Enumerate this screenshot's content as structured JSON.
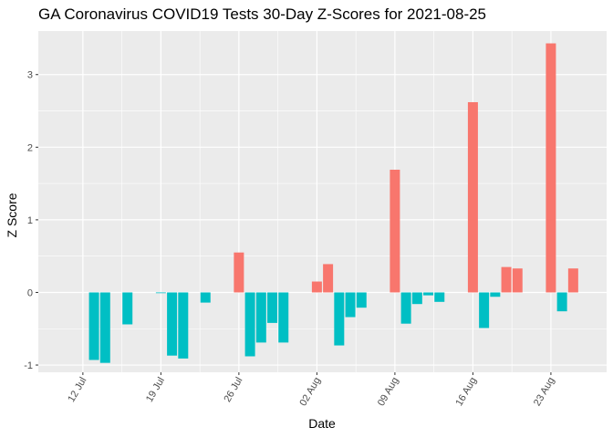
{
  "chart_data": {
    "type": "bar",
    "title": "GA Coronavirus COVID19 Tests 30-Day Z-Scores for 2021-08-25",
    "xlabel": "Date",
    "ylabel": "Z Score",
    "ylim": [
      -1.1,
      3.6
    ],
    "yticks": [
      -1,
      0,
      1,
      2,
      3
    ],
    "xlim": [
      "2021-07-08",
      "2021-08-28"
    ],
    "xticks": [
      {
        "date": "2021-07-12",
        "label": "12 Jul"
      },
      {
        "date": "2021-07-19",
        "label": "19 Jul"
      },
      {
        "date": "2021-07-26",
        "label": "26 Jul"
      },
      {
        "date": "2021-08-02",
        "label": "02 Aug"
      },
      {
        "date": "2021-08-09",
        "label": "09 Aug"
      },
      {
        "date": "2021-08-16",
        "label": "16 Aug"
      },
      {
        "date": "2021-08-23",
        "label": "23 Aug"
      }
    ],
    "grid": true,
    "legend": "none",
    "colors": {
      "positive": "#F8766D",
      "negative": "#00BFC4",
      "panel": "#EBEBEB",
      "grid": "#FFFFFF"
    },
    "points": [
      {
        "date": "2021-07-13",
        "value": -0.93
      },
      {
        "date": "2021-07-14",
        "value": -0.97
      },
      {
        "date": "2021-07-16",
        "value": -0.44
      },
      {
        "date": "2021-07-19",
        "value": -0.01
      },
      {
        "date": "2021-07-20",
        "value": -0.87
      },
      {
        "date": "2021-07-21",
        "value": -0.91
      },
      {
        "date": "2021-07-23",
        "value": -0.14
      },
      {
        "date": "2021-07-26",
        "value": 0.55
      },
      {
        "date": "2021-07-27",
        "value": -0.88
      },
      {
        "date": "2021-07-28",
        "value": -0.69
      },
      {
        "date": "2021-07-29",
        "value": -0.42
      },
      {
        "date": "2021-07-30",
        "value": -0.69
      },
      {
        "date": "2021-08-02",
        "value": 0.15
      },
      {
        "date": "2021-08-03",
        "value": 0.39
      },
      {
        "date": "2021-08-04",
        "value": -0.73
      },
      {
        "date": "2021-08-05",
        "value": -0.34
      },
      {
        "date": "2021-08-06",
        "value": -0.21
      },
      {
        "date": "2021-08-09",
        "value": 1.69
      },
      {
        "date": "2021-08-10",
        "value": -0.43
      },
      {
        "date": "2021-08-11",
        "value": -0.16
      },
      {
        "date": "2021-08-12",
        "value": -0.04
      },
      {
        "date": "2021-08-13",
        "value": -0.13
      },
      {
        "date": "2021-08-16",
        "value": 2.62
      },
      {
        "date": "2021-08-17",
        "value": -0.49
      },
      {
        "date": "2021-08-18",
        "value": -0.06
      },
      {
        "date": "2021-08-19",
        "value": 0.35
      },
      {
        "date": "2021-08-20",
        "value": 0.33
      },
      {
        "date": "2021-08-23",
        "value": 3.43
      },
      {
        "date": "2021-08-24",
        "value": -0.26
      },
      {
        "date": "2021-08-25",
        "value": 0.33
      }
    ]
  }
}
